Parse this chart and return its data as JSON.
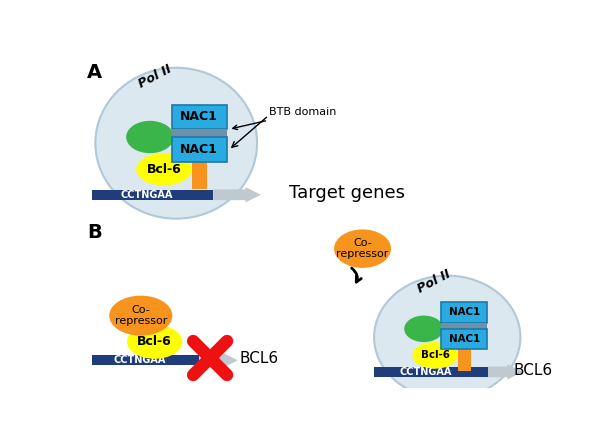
{
  "bg_color": "#ffffff",
  "panel_A_label": "A",
  "panel_B_label": "B",
  "nac1_color": "#29abe2",
  "btb_color": "#7090a8",
  "bcl6_color": "#ffff00",
  "green_ellipse_color": "#39b54a",
  "orange_color": "#f7941d",
  "dna_color": "#1f3d7a",
  "circle_fill": "#dce8f0",
  "circle_edge": "#b0c8d8",
  "polII_text": "Pol II",
  "nac1_text": "NAC1",
  "bcl6_text": "Bcl-6",
  "btb_label": "BTB domain",
  "cctngaa_text": "CCTNGAA",
  "target_genes_text": "Target genes",
  "bcl6_label": "BCL6",
  "corepressor_text": "Co-\nrepressor",
  "nac1_edge": "#1a7aa8",
  "arrow_gray": "#c0c8d0",
  "red_x": "#ee1111"
}
